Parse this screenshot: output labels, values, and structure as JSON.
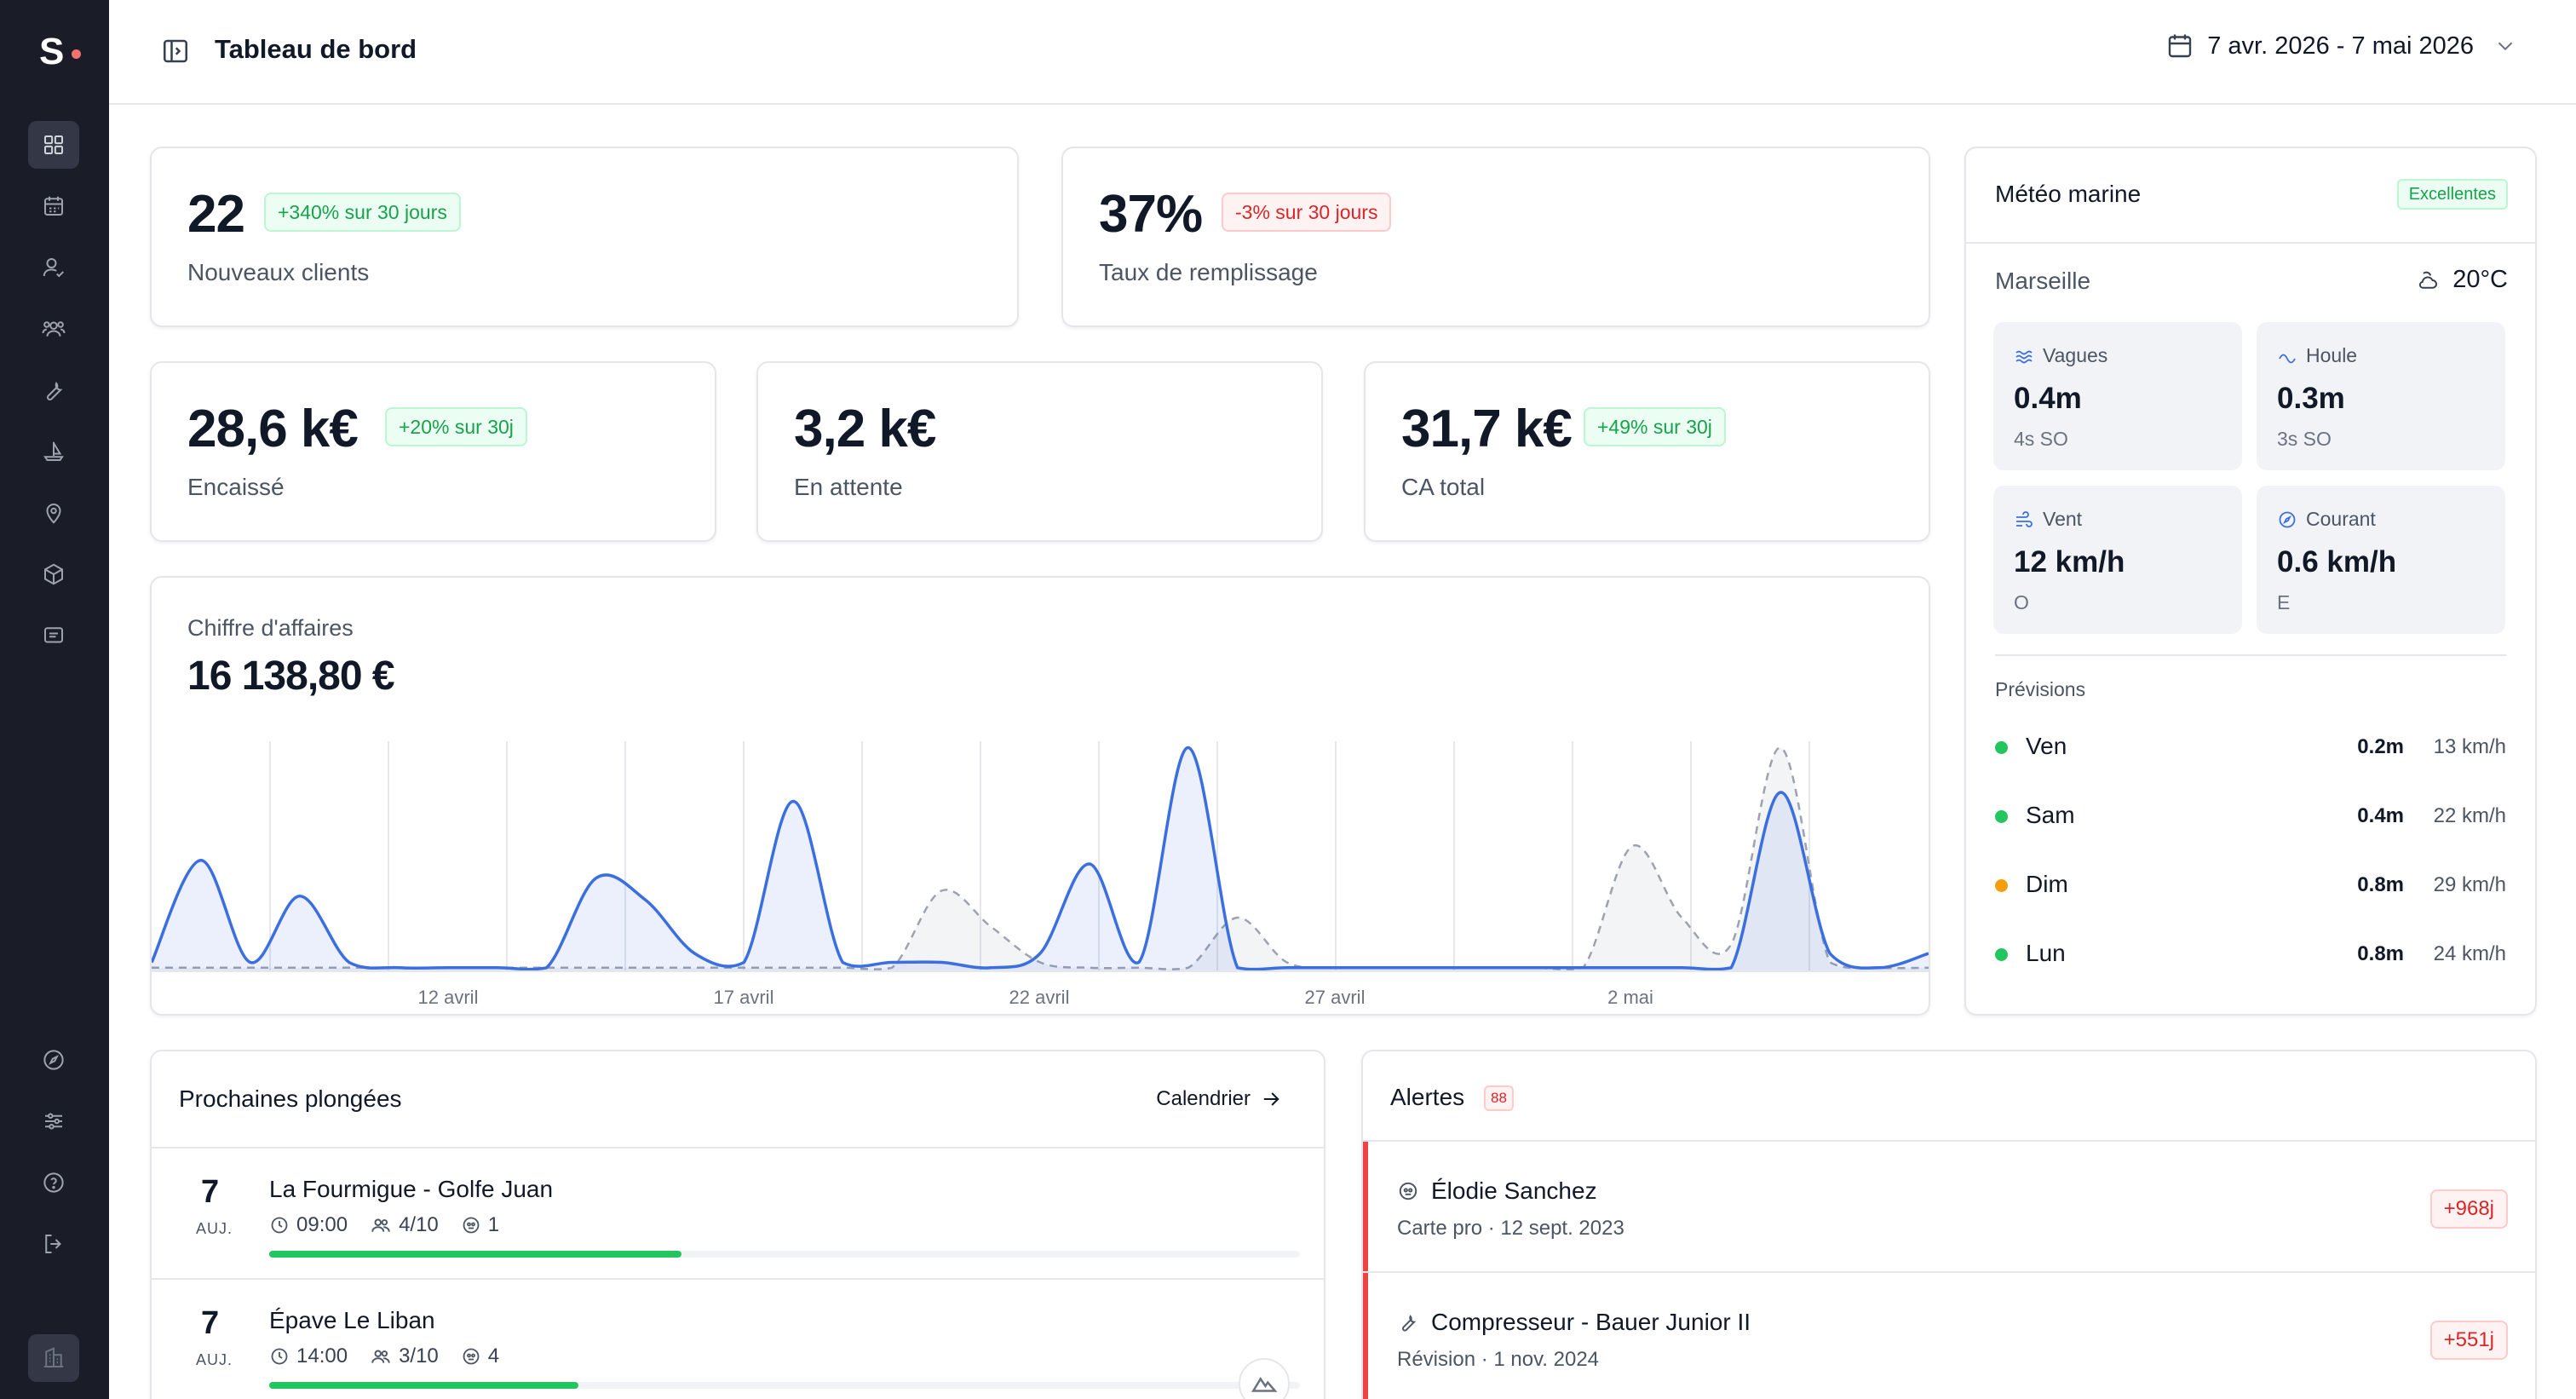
{
  "app": {
    "logo_text": "S",
    "page_title": "Tableau de bord",
    "date_range": "7 avr. 2026 - 7 mai 2026"
  },
  "sidebar": {
    "top_items": [
      "dashboard-icon",
      "calendar-icon",
      "user-check-icon",
      "users-icon",
      "wrench-icon",
      "boat-icon",
      "map-pin-icon",
      "box-icon",
      "message-icon"
    ],
    "bottom_items": [
      "compass-icon",
      "sliders-icon",
      "help-icon",
      "logout-icon"
    ],
    "footer_item": "building-icon"
  },
  "stats": {
    "new_clients": {
      "value": "22",
      "badge": "+340% sur 30 jours",
      "label": "Nouveaux clients"
    },
    "occupancy": {
      "value": "37%",
      "badge": "-3% sur 30 jours",
      "label": "Taux de remplissage"
    },
    "collected": {
      "value": "28,6 k€",
      "badge": "+20% sur 30j",
      "label": "Encaissé"
    },
    "pending": {
      "value": "3,2 k€",
      "label": "En attente"
    },
    "total": {
      "value": "31,7 k€",
      "badge": "+49% sur 30j",
      "label": "CA total"
    }
  },
  "revenue": {
    "label": "Chiffre d'affaires",
    "total": "16 138,80 €"
  },
  "chart_data": {
    "type": "area",
    "x_tick_labels": [
      "12 avril",
      "17 avril",
      "22 avril",
      "27 avril",
      "2 mai"
    ],
    "series": [
      {
        "style": "solid-blue-area",
        "values": [
          0.05,
          0.62,
          0.05,
          0.42,
          0.05,
          0.02,
          0.02,
          0.02,
          0.02,
          0.52,
          0.4,
          0.1,
          0.05,
          0.95,
          0.05,
          0.05,
          0.05,
          0.02,
          0.1,
          0.6,
          0.05,
          1.25,
          0.02,
          0.02,
          0.02,
          0.02,
          0.02,
          0.02,
          0.02,
          0.02,
          0.02,
          0.02,
          0.02,
          1.0,
          0.1,
          0.02,
          0.1
        ]
      },
      {
        "style": "dashed-gray-area",
        "values": [
          0.02,
          0.02,
          0.02,
          0.02,
          0.02,
          0.02,
          0.02,
          0.02,
          0.02,
          0.02,
          0.02,
          0.02,
          0.02,
          0.02,
          0.02,
          0.02,
          0.45,
          0.25,
          0.05,
          0.02,
          0.02,
          0.02,
          0.3,
          0.05,
          0.02,
          0.02,
          0.02,
          0.02,
          0.02,
          0.02,
          0.7,
          0.3,
          0.15,
          1.25,
          0.05,
          0.02,
          0.02
        ]
      }
    ]
  },
  "weather": {
    "title": "Météo marine",
    "status": "Excellentes",
    "city": "Marseille",
    "temperature": "20°C",
    "tiles": [
      {
        "label": "Vagues",
        "value": "0.4m",
        "sub": "4s SO",
        "icon": "waves-icon"
      },
      {
        "label": "Houle",
        "value": "0.3m",
        "sub": "3s SO",
        "icon": "swell-icon"
      },
      {
        "label": "Vent",
        "value": "12 km/h",
        "sub": "O",
        "icon": "wind-icon"
      },
      {
        "label": "Courant",
        "value": "0.6 km/h",
        "sub": "E",
        "icon": "current-icon"
      }
    ],
    "forecast_title": "Prévisions",
    "forecast": [
      {
        "day": "Ven",
        "wave": "0.2m",
        "wind": "13 km/h",
        "color": "#22c55e"
      },
      {
        "day": "Sam",
        "wave": "0.4m",
        "wind": "22 km/h",
        "color": "#22c55e"
      },
      {
        "day": "Dim",
        "wave": "0.8m",
        "wind": "29 km/h",
        "color": "#f59e0b"
      },
      {
        "day": "Lun",
        "wave": "0.8m",
        "wind": "24 km/h",
        "color": "#22c55e"
      }
    ]
  },
  "dives": {
    "title": "Prochaines plongées",
    "calendar_link": "Calendrier",
    "items": [
      {
        "day": "7",
        "month": "AUJ.",
        "name": "La Fourmigue - Golfe Juan",
        "time": "09:00",
        "divers": "4/10",
        "instructors": "1",
        "fill": 0.4
      },
      {
        "day": "7",
        "month": "AUJ.",
        "name": "Épave Le Liban",
        "time": "14:00",
        "divers": "3/10",
        "instructors": "4",
        "fill": 0.3
      }
    ]
  },
  "alerts": {
    "title": "Alertes",
    "count": "88",
    "items": [
      {
        "name": "Élodie Sanchez",
        "sub": "Carte pro · 12 sept. 2023",
        "badge": "+968j",
        "icon": "diver-icon"
      },
      {
        "name": "Compresseur - Bauer Junior II",
        "sub": "Révision · 1 nov. 2024",
        "badge": "+551j",
        "icon": "wrench-icon"
      }
    ]
  },
  "colors": {
    "sidebar_bg": "#1a1d27",
    "accent_blue": "#3b6fe0",
    "success": "#22c55e",
    "danger": "#ef4444"
  }
}
